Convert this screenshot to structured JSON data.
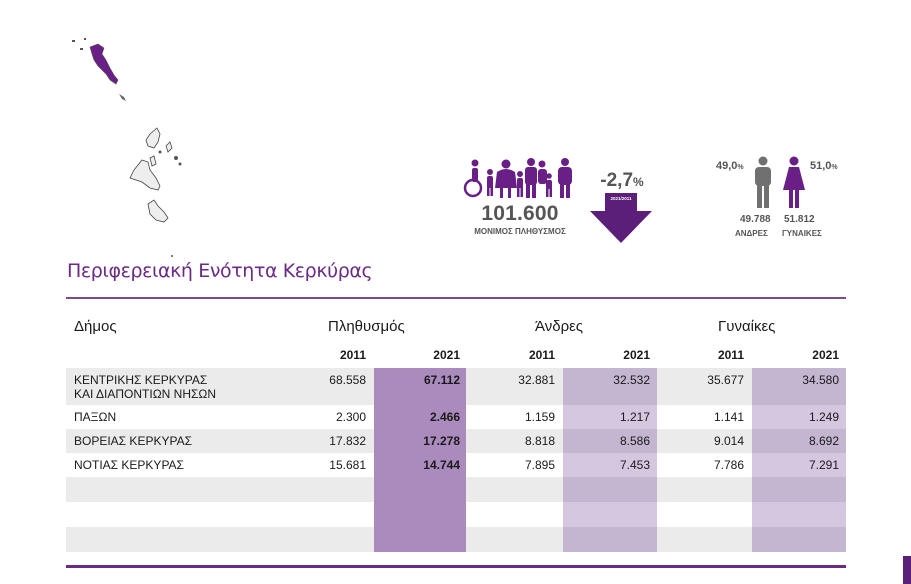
{
  "summary": {
    "population_value": "101.600",
    "population_label": "ΜΟΝΙΜΟΣ ΠΛΗΘΥΣΜΟΣ",
    "change_value": "-2,7",
    "change_unit": "%",
    "change_period": "2021/2011",
    "men_pct": "49,0",
    "women_pct": "51,0",
    "pct_unit": "%",
    "men_count": "49.788",
    "women_count": "51.812",
    "men_label": "ΑΝΔΡΕΣ",
    "women_label": "ΓΥΝΑΙΚΕΣ",
    "accent_color": "#5b1f7a",
    "gray_color": "#707070"
  },
  "title": "Περιφερειακή Ενότητα Κερκύρας",
  "table": {
    "headers": {
      "municipality": "Δήμος",
      "population": "Πληθυσμός",
      "men": "Άνδρες",
      "women": "Γυναίκες"
    },
    "years": [
      "2011",
      "2021",
      "2011",
      "2021",
      "2011",
      "2021"
    ],
    "rows": [
      {
        "name_line1": "ΚΕΝΤΡΙΚΗΣ ΚΕΡΚΥΡΑΣ",
        "name_line2": "ΚΑΙ ΔΙΑΠΟΝΤΙΩΝ ΝΗΣΩΝ",
        "pop_2011": "68.558",
        "pop_2021": "67.112",
        "men_2011": "32.881",
        "men_2021": "32.532",
        "women_2011": "35.677",
        "women_2021": "34.580"
      },
      {
        "name_line1": "ΠΑΞΩΝ",
        "pop_2011": "2.300",
        "pop_2021": "2.466",
        "men_2011": "1.159",
        "men_2021": "1.217",
        "women_2011": "1.141",
        "women_2021": "1.249"
      },
      {
        "name_line1": "ΒΟΡΕΙΑΣ ΚΕΡΚΥΡΑΣ",
        "pop_2011": "17.832",
        "pop_2021": "17.278",
        "men_2011": "8.818",
        "men_2021": "8.586",
        "women_2011": "9.014",
        "women_2021": "8.692"
      },
      {
        "name_line1": "ΝΟΤΙΑΣ ΚΕΡΚΥΡΑΣ",
        "pop_2011": "15.681",
        "pop_2021": "14.744",
        "men_2011": "7.895",
        "men_2021": "7.453",
        "women_2011": "7.786",
        "women_2021": "7.291"
      }
    ]
  }
}
